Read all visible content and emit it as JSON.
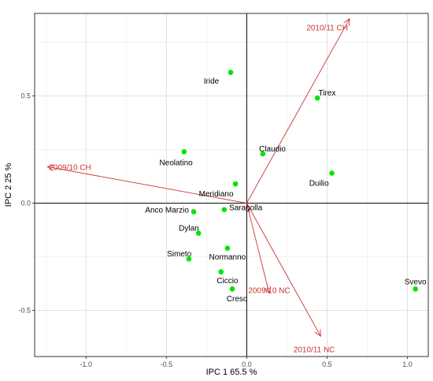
{
  "chart_data": {
    "type": "scatter",
    "title": "",
    "xlabel": "IPC 1 65.5 %",
    "ylabel": "IPC 2 25 %",
    "xlim": [
      -1.32,
      1.13
    ],
    "ylim": [
      -0.715,
      0.885
    ],
    "xticks": [
      -1.0,
      -0.5,
      0.0,
      0.5,
      1.0
    ],
    "xtick_labels": [
      "-1.0",
      "-0.5",
      "0.0",
      "0.5",
      "1.0"
    ],
    "yticks": [
      -0.5,
      0.0,
      0.5
    ],
    "ytick_labels": [
      "-0.5",
      "0.0",
      "0.5"
    ],
    "grid": true,
    "reference_lines": [
      0,
      0
    ],
    "point_color": "#00e600",
    "vector_color": "#cc3333",
    "points": [
      {
        "label": "Iride",
        "x": -0.1,
        "y": 0.61
      },
      {
        "label": "Tirex",
        "x": 0.44,
        "y": 0.49
      },
      {
        "label": "Claudio",
        "x": 0.1,
        "y": 0.23
      },
      {
        "label": "Neolatino",
        "x": -0.39,
        "y": 0.24
      },
      {
        "label": "Duilio",
        "x": 0.53,
        "y": 0.14
      },
      {
        "label": "Meridiano",
        "x": -0.07,
        "y": 0.09
      },
      {
        "label": "Anco Marzio",
        "x": -0.33,
        "y": -0.04
      },
      {
        "label": "Saragolla",
        "x": -0.14,
        "y": -0.03
      },
      {
        "label": "Dylan",
        "x": -0.3,
        "y": -0.14
      },
      {
        "label": "Normanno",
        "x": -0.12,
        "y": -0.21
      },
      {
        "label": "Simeto",
        "x": -0.36,
        "y": -0.26
      },
      {
        "label": "Ciccio",
        "x": -0.16,
        "y": -0.32
      },
      {
        "label": "Creso",
        "x": -0.09,
        "y": -0.4
      },
      {
        "label": "Svevo",
        "x": 1.05,
        "y": -0.4
      }
    ],
    "vectors": [
      {
        "label": "2010/11 CH",
        "x": 0.64,
        "y": 0.86
      },
      {
        "label": "2009/10 CH",
        "x": -1.24,
        "y": 0.17
      },
      {
        "label": "2009/10 NC",
        "x": 0.14,
        "y": -0.42
      },
      {
        "label": "2010/11 NC",
        "x": 0.46,
        "y": -0.62
      }
    ]
  }
}
